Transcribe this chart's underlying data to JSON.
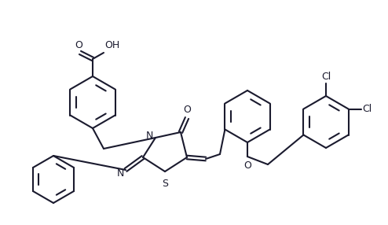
{
  "bg_color": "#ffffff",
  "line_color": "#1a1a2e",
  "line_width": 1.5,
  "font_size": 9,
  "fig_width": 4.94,
  "fig_height": 2.86,
  "dpi": 100,
  "cooh_label_o": "O",
  "cooh_label_oh": "OH",
  "n_label": "N",
  "s_label": "S",
  "o_label": "O",
  "cl1_label": "Cl",
  "cl2_label": "Cl",
  "o_ether_label": "O"
}
